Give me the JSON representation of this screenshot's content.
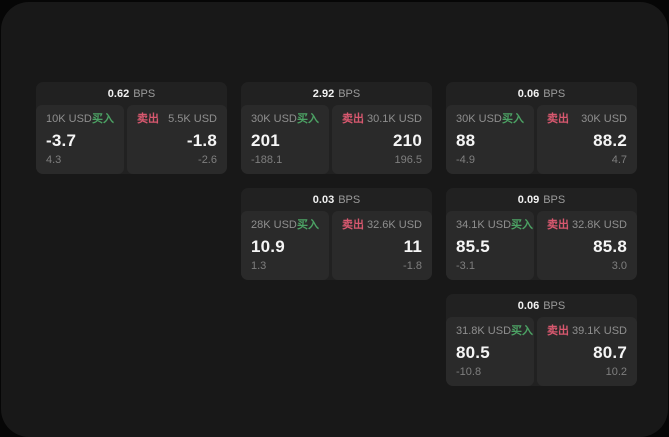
{
  "labels": {
    "bps_unit": "BPS",
    "buy": "买入",
    "sell": "卖出"
  },
  "colors": {
    "page_bg": "#060606",
    "window_bg": "#181818",
    "card_bg": "#212121",
    "panel_bg": "#2a2a2a",
    "text_primary": "#f5f5f5",
    "text_muted": "#8f8f8f",
    "buy_green": "#4ca264",
    "sell_red": "#d8586f"
  },
  "cards": [
    {
      "bps": "0.62",
      "buy_side": {
        "amount": "10K USD",
        "price": "-3.7",
        "delta": "4.3"
      },
      "sell_side": {
        "amount": "5.5K USD",
        "price": "-1.8",
        "delta": "-2.6"
      }
    },
    {
      "bps": "2.92",
      "buy_side": {
        "amount": "30K USD",
        "price": "201",
        "delta": "-188.1"
      },
      "sell_side": {
        "amount": "30.1K USD",
        "price": "210",
        "delta": "196.5"
      }
    },
    {
      "bps": "0.06",
      "buy_side": {
        "amount": "30K USD",
        "price": "88",
        "delta": "-4.9"
      },
      "sell_side": {
        "amount": "30K USD",
        "price": "88.2",
        "delta": "4.7"
      }
    },
    {
      "bps": "0.03",
      "buy_side": {
        "amount": "28K USD",
        "price": "10.9",
        "delta": "1.3"
      },
      "sell_side": {
        "amount": "32.6K USD",
        "price": "11",
        "delta": "-1.8"
      }
    },
    {
      "bps": "0.09",
      "buy_side": {
        "amount": "34.1K USD",
        "price": "85.5",
        "delta": "-3.1"
      },
      "sell_side": {
        "amount": "32.8K USD",
        "price": "85.8",
        "delta": "3.0"
      }
    },
    {
      "bps": "0.06",
      "buy_side": {
        "amount": "31.8K USD",
        "price": "80.5",
        "delta": "-10.8"
      },
      "sell_side": {
        "amount": "39.1K USD",
        "price": "80.7",
        "delta": "10.2"
      }
    }
  ]
}
